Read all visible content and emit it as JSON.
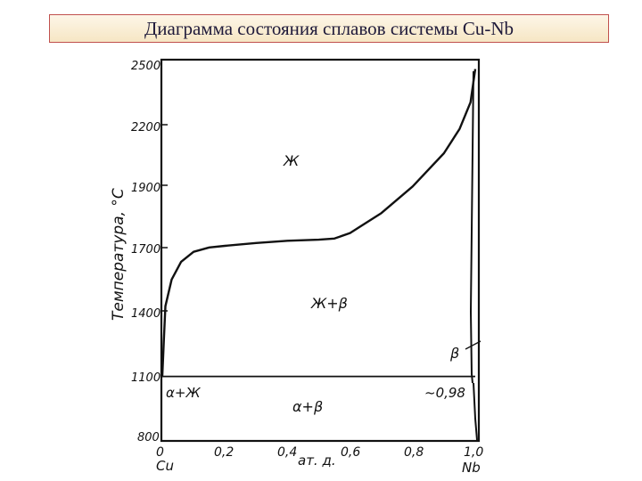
{
  "header": {
    "title": "Диаграмма состояния сплавов системы Cu-Nb"
  },
  "axes": {
    "y_label": "Температура, °С",
    "x_label": "ат. д.",
    "y_ticks": [
      "2500",
      "2200",
      "1900",
      "1700",
      "1400",
      "1100",
      "800"
    ],
    "x_ticks": [
      "0",
      "0,2",
      "0,4",
      "0,6",
      "0,8",
      "1,0"
    ],
    "x_left_element": "Cu",
    "x_right_element": "Nb"
  },
  "regions": {
    "liquid": "Ж",
    "liquid_beta": "Ж+β",
    "beta": "β",
    "alpha_liquid": "α+Ж",
    "alpha_beta": "α+β",
    "solubility_note": "~0,98"
  },
  "chart_data": {
    "type": "line",
    "xlabel": "ат. д.",
    "ylabel": "Температура, °С",
    "ylim": [
      800,
      2500
    ],
    "xlim": [
      0,
      1.0
    ],
    "series": [
      {
        "x": [
          0,
          0.005,
          0.01,
          0.03,
          0.06,
          0.1,
          0.15,
          0.2,
          0.3,
          0.4,
          0.5,
          0.55,
          0.6,
          0.7,
          0.8,
          0.9,
          0.95,
          0.985,
          1.0
        ],
        "y": [
          1083,
          1250,
          1400,
          1520,
          1600,
          1645,
          1665,
          1672,
          1685,
          1695,
          1700,
          1705,
          1730,
          1820,
          1940,
          2090,
          2200,
          2320,
          2470
        ]
      },
      {
        "x": [
          0,
          1.0
        ],
        "y": [
          1083,
          1083
        ]
      }
    ]
  }
}
